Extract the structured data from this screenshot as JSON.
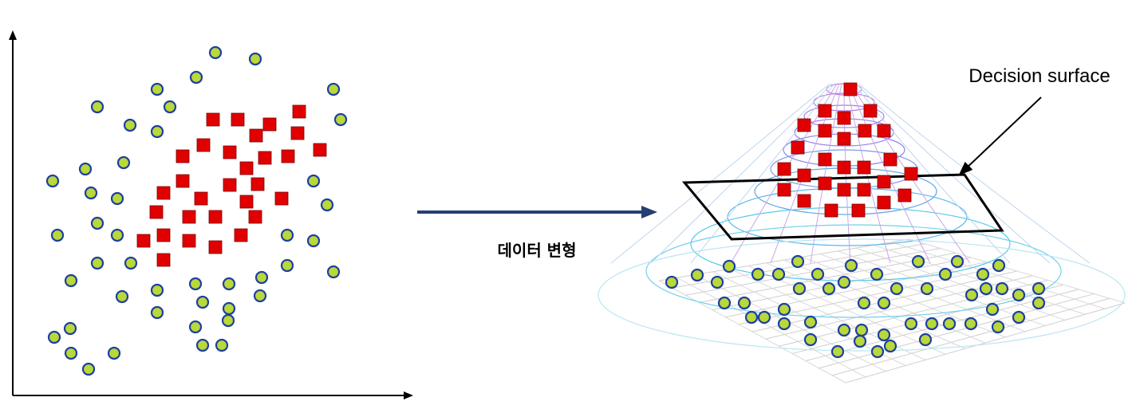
{
  "colors": {
    "circle_fill": "#b9d83a",
    "circle_stroke": "#1f3fa0",
    "square_fill": "#e00000",
    "square_stroke": "#7a0000",
    "arrow": "#243f73",
    "axis": "#000000",
    "plane": "#000000"
  },
  "transform_label": "데이터 변형",
  "decision_label": "Decision surface",
  "icons": {
    "transform_arrow": "right-arrow-icon",
    "pointer_arrow": "pointer-arrow-icon"
  }
}
